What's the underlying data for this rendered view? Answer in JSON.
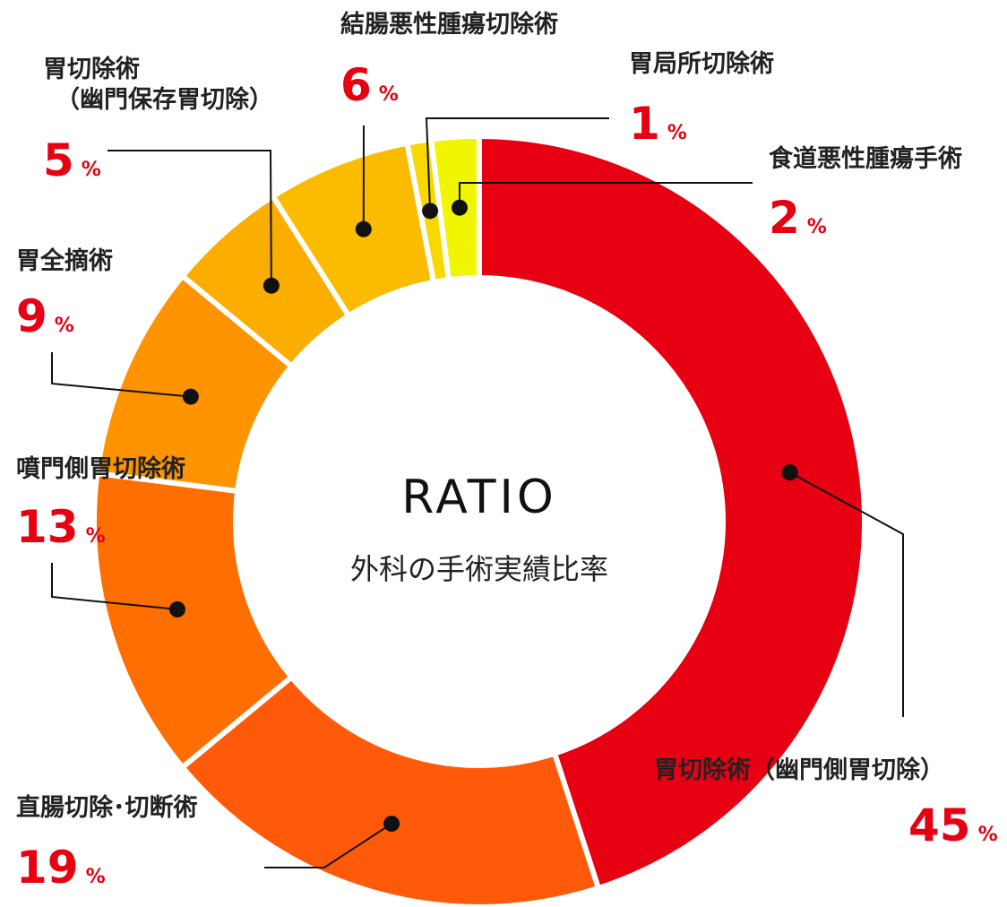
{
  "chart_data": {
    "type": "pie",
    "center": {
      "title": "RATIO",
      "subtitle": "外科の手術実績比率"
    },
    "percent_sign": "%",
    "slices": [
      {
        "label": "胃切除術（幽門側胃切除）",
        "value": 45,
        "color": "#e60012"
      },
      {
        "label": "直腸切除･切断術",
        "value": 19,
        "color": "#ff5a0a"
      },
      {
        "label": "噴門側胃切除術",
        "value": 13,
        "color": "#ff6e00"
      },
      {
        "label": "胃全摘術",
        "value": 9,
        "color": "#ff9400"
      },
      {
        "label": "胃切除術|（幽門保存胃切除）",
        "value": 5,
        "color": "#fbad00"
      },
      {
        "label": "結腸悪性腫瘍切除術",
        "value": 6,
        "color": "#fbbc00"
      },
      {
        "label": "胃局所切除術",
        "value": 1,
        "color": "#f7d800"
      },
      {
        "label": "食道悪性腫瘍手術",
        "value": 2,
        "color": "#f2f500"
      }
    ]
  }
}
